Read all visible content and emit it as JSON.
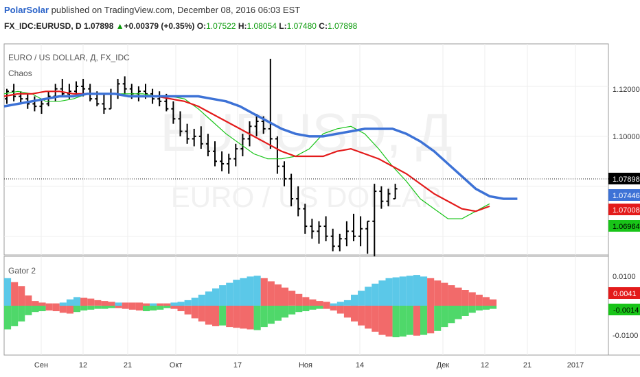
{
  "header": {
    "author": "PolarSolar",
    "published": "published on TradingView.com, December 08, 2016 06:03 EST",
    "symbol": "FX_IDC:EURUSD, D",
    "last": "1.07898",
    "change": "+0.00379 (+0.35%)",
    "o_label": "O:",
    "o": "1.07522",
    "h_label": "H:",
    "h": "1.08054",
    "l_label": "L:",
    "l": "1.07480",
    "c_label": "C:",
    "c": "1.07898"
  },
  "main_pane": {
    "title": "EURO / US DOLLAR, Д, FX_IDC",
    "indicator": "Chaos",
    "watermark_line1": "EURUSD, Д",
    "watermark_line2": "EURO / US DOLLAR",
    "axis_ticks": [
      "1.12000",
      "1.10000"
    ],
    "price_labels": [
      {
        "value": "1.07898",
        "color": "#000000"
      },
      {
        "value": "1.07446",
        "color": "#3d72d6"
      },
      {
        "value": "1.07008",
        "color": "#e31b1b"
      },
      {
        "value": "1.06964",
        "color": "#18c418"
      }
    ]
  },
  "lower_pane": {
    "title": "Gator 2",
    "axis_ticks": [
      "0.0100",
      "-0.0100"
    ],
    "value_labels": [
      {
        "value": "0.0041",
        "color": "#e31b1b"
      },
      {
        "value": "-0.0014",
        "color": "#18c418"
      }
    ]
  },
  "x_axis": {
    "labels": [
      "Сен",
      "12",
      "21",
      "Окт",
      "17",
      "Ноя",
      "14",
      "Дек",
      "12",
      "21",
      "2017"
    ]
  },
  "colors": {
    "jaw": "#3d72d6",
    "teeth": "#e31b1b",
    "lips": "#18c418",
    "gator_up_top": "#5bc8e8",
    "gator_down_top": "#f26a6a",
    "gator_up_bottom": "#4fd86a",
    "gator_down_bottom": "#f26a6a"
  },
  "chart_data": {
    "type": "line",
    "price_range": [
      1.0525,
      1.137
    ],
    "alligator_jaw": [
      1.112,
      1.113,
      1.114,
      1.115,
      1.116,
      1.116,
      1.117,
      1.117,
      1.117,
      1.116,
      1.116,
      1.116,
      1.116,
      1.116,
      1.116,
      1.115,
      1.114,
      1.112,
      1.109,
      1.106,
      1.103,
      1.101,
      1.1,
      1.1,
      1.101,
      1.102,
      1.103,
      1.103,
      1.103,
      1.101,
      1.098,
      1.094,
      1.089,
      1.084,
      1.079,
      1.076,
      1.075,
      1.075
    ],
    "alligator_teeth": [
      1.116,
      1.117,
      1.117,
      1.118,
      1.118,
      1.117,
      1.117,
      1.117,
      1.117,
      1.116,
      1.116,
      1.116,
      1.115,
      1.114,
      1.112,
      1.109,
      1.106,
      1.103,
      1.1,
      1.097,
      1.094,
      1.092,
      1.092,
      1.092,
      1.094,
      1.095,
      1.093,
      1.091,
      1.088,
      1.085,
      1.081,
      1.077,
      1.074,
      1.071,
      1.07,
      1.072
    ],
    "alligator_lips": [
      1.117,
      1.118,
      1.117,
      1.114,
      1.114,
      1.115,
      1.117,
      1.117,
      1.117,
      1.117,
      1.117,
      1.116,
      1.116,
      1.115,
      1.111,
      1.106,
      1.101,
      1.097,
      1.093,
      1.091,
      1.091,
      1.092,
      1.095,
      1.101,
      1.103,
      1.104,
      1.101,
      1.095,
      1.088,
      1.082,
      1.075,
      1.071,
      1.067,
      1.067,
      1.07,
      1.073
    ],
    "bars": [
      {
        "h": 1.119,
        "l": 1.113,
        "o": 1.115,
        "c": 1.118
      },
      {
        "h": 1.121,
        "l": 1.114,
        "o": 1.118,
        "c": 1.116
      },
      {
        "h": 1.118,
        "l": 1.113,
        "o": 1.116,
        "c": 1.115
      },
      {
        "h": 1.117,
        "l": 1.111,
        "o": 1.115,
        "c": 1.113
      },
      {
        "h": 1.116,
        "l": 1.11,
        "o": 1.113,
        "c": 1.112
      },
      {
        "h": 1.115,
        "l": 1.109,
        "o": 1.112,
        "c": 1.113
      },
      {
        "h": 1.118,
        "l": 1.112,
        "o": 1.113,
        "c": 1.116
      },
      {
        "h": 1.121,
        "l": 1.114,
        "o": 1.116,
        "c": 1.119
      },
      {
        "h": 1.123,
        "l": 1.116,
        "o": 1.119,
        "c": 1.117
      },
      {
        "h": 1.121,
        "l": 1.115,
        "o": 1.117,
        "c": 1.118
      },
      {
        "h": 1.122,
        "l": 1.116,
        "o": 1.118,
        "c": 1.12
      },
      {
        "h": 1.123,
        "l": 1.116,
        "o": 1.12,
        "c": 1.119
      },
      {
        "h": 1.121,
        "l": 1.114,
        "o": 1.119,
        "c": 1.115
      },
      {
        "h": 1.118,
        "l": 1.112,
        "o": 1.115,
        "c": 1.113
      },
      {
        "h": 1.117,
        "l": 1.109,
        "o": 1.113,
        "c": 1.111
      },
      {
        "h": 1.119,
        "l": 1.111,
        "o": 1.111,
        "c": 1.117
      },
      {
        "h": 1.123,
        "l": 1.115,
        "o": 1.117,
        "c": 1.121
      },
      {
        "h": 1.124,
        "l": 1.117,
        "o": 1.121,
        "c": 1.119
      },
      {
        "h": 1.121,
        "l": 1.115,
        "o": 1.119,
        "c": 1.117
      },
      {
        "h": 1.12,
        "l": 1.114,
        "o": 1.117,
        "c": 1.118
      },
      {
        "h": 1.121,
        "l": 1.115,
        "o": 1.118,
        "c": 1.117
      },
      {
        "h": 1.119,
        "l": 1.113,
        "o": 1.117,
        "c": 1.115
      },
      {
        "h": 1.118,
        "l": 1.112,
        "o": 1.115,
        "c": 1.114
      },
      {
        "h": 1.117,
        "l": 1.11,
        "o": 1.114,
        "c": 1.111
      },
      {
        "h": 1.114,
        "l": 1.105,
        "o": 1.111,
        "c": 1.107
      },
      {
        "h": 1.11,
        "l": 1.1,
        "o": 1.107,
        "c": 1.102
      },
      {
        "h": 1.105,
        "l": 1.097,
        "o": 1.102,
        "c": 1.099
      },
      {
        "h": 1.103,
        "l": 1.096,
        "o": 1.099,
        "c": 1.1
      },
      {
        "h": 1.104,
        "l": 1.095,
        "o": 1.1,
        "c": 1.097
      },
      {
        "h": 1.101,
        "l": 1.092,
        "o": 1.097,
        "c": 1.094
      },
      {
        "h": 1.098,
        "l": 1.088,
        "o": 1.094,
        "c": 1.09
      },
      {
        "h": 1.094,
        "l": 1.086,
        "o": 1.09,
        "c": 1.089
      },
      {
        "h": 1.093,
        "l": 1.085,
        "o": 1.089,
        "c": 1.091
      },
      {
        "h": 1.097,
        "l": 1.088,
        "o": 1.091,
        "c": 1.095
      },
      {
        "h": 1.101,
        "l": 1.092,
        "o": 1.095,
        "c": 1.099
      },
      {
        "h": 1.106,
        "l": 1.096,
        "o": 1.099,
        "c": 1.104
      },
      {
        "h": 1.109,
        "l": 1.1,
        "o": 1.104,
        "c": 1.106
      },
      {
        "h": 1.108,
        "l": 1.101,
        "o": 1.106,
        "c": 1.103
      },
      {
        "h": 1.131,
        "l": 1.095,
        "o": 1.103,
        "c": 1.099
      },
      {
        "h": 1.1,
        "l": 1.085,
        "o": 1.099,
        "c": 1.088
      },
      {
        "h": 1.09,
        "l": 1.08,
        "o": 1.088,
        "c": 1.083
      },
      {
        "h": 1.085,
        "l": 1.072,
        "o": 1.083,
        "c": 1.075
      },
      {
        "h": 1.08,
        "l": 1.068,
        "o": 1.075,
        "c": 1.071
      },
      {
        "h": 1.073,
        "l": 1.061,
        "o": 1.071,
        "c": 1.064
      },
      {
        "h": 1.067,
        "l": 1.059,
        "o": 1.064,
        "c": 1.062
      },
      {
        "h": 1.066,
        "l": 1.057,
        "o": 1.062,
        "c": 1.064
      },
      {
        "h": 1.068,
        "l": 1.058,
        "o": 1.064,
        "c": 1.06
      },
      {
        "h": 1.063,
        "l": 1.054,
        "o": 1.06,
        "c": 1.056
      },
      {
        "h": 1.061,
        "l": 1.054,
        "o": 1.056,
        "c": 1.059
      },
      {
        "h": 1.066,
        "l": 1.056,
        "o": 1.059,
        "c": 1.062
      },
      {
        "h": 1.069,
        "l": 1.058,
        "o": 1.062,
        "c": 1.06
      },
      {
        "h": 1.068,
        "l": 1.056,
        "o": 1.06,
        "c": 1.063
      },
      {
        "h": 1.066,
        "l": 1.053,
        "o": 1.063,
        "c": 1.066
      },
      {
        "h": 1.081,
        "l": 1.052,
        "o": 1.066,
        "c": 1.078
      },
      {
        "h": 1.08,
        "l": 1.071,
        "o": 1.078,
        "c": 1.074
      },
      {
        "h": 1.079,
        "l": 1.072,
        "o": 1.074,
        "c": 1.077
      },
      {
        "h": 1.081,
        "l": 1.075,
        "o": 1.075,
        "c": 1.079
      }
    ],
    "gator_upper": [
      3.5,
      3.0,
      2.5,
      1.3,
      0.6,
      0.4,
      0.3,
      0.3,
      0.4,
      0.8,
      1.1,
      1.0,
      0.9,
      0.7,
      0.6,
      0.5,
      0.4,
      0.4,
      0.4,
      0.4,
      0.3,
      0.3,
      0.3,
      0.3,
      0.4,
      0.5,
      0.7,
      1.0,
      1.4,
      1.8,
      2.2,
      2.6,
      2.9,
      3.3,
      3.5,
      3.7,
      3.8,
      3.5,
      3.1,
      2.7,
      2.3,
      1.9,
      1.5,
      1.1,
      0.8,
      0.6,
      0.5,
      0.3,
      0.5,
      0.7,
      1.4,
      1.9,
      2.4,
      2.8,
      3.2,
      3.5,
      3.6,
      3.7,
      3.8,
      3.9,
      3.7,
      3.5,
      3.2,
      2.9,
      2.6,
      2.3,
      2.0,
      1.7,
      1.4,
      1.1,
      0.8
    ],
    "gator_lower": [
      3.0,
      2.6,
      2.0,
      1.2,
      0.8,
      0.7,
      0.6,
      0.7,
      0.9,
      1.0,
      0.8,
      0.6,
      0.5,
      0.4,
      0.4,
      0.3,
      0.3,
      0.4,
      0.5,
      0.6,
      0.7,
      0.6,
      0.5,
      0.3,
      0.4,
      0.7,
      1.1,
      1.6,
      2.0,
      2.4,
      2.6,
      2.5,
      2.7,
      2.8,
      2.9,
      3.0,
      3.1,
      2.7,
      2.3,
      1.9,
      1.5,
      1.1,
      0.8,
      0.7,
      0.5,
      0.4,
      0.4,
      0.6,
      1.0,
      1.5,
      2.0,
      2.5,
      2.9,
      3.3,
      3.7,
      3.9,
      4.0,
      3.9,
      3.7,
      3.8,
      3.7,
      3.5,
      3.2,
      2.7,
      2.2,
      1.7,
      1.3,
      0.9,
      0.6,
      0.5,
      0.4
    ],
    "gator_upper_colors": "UDDDDDDDUUUDDDDDUDDDDUDDUUUUUUUUUUUUUDDDDDDDDDDUUUUUUUUUUUUUUDDDDDDDDDD",
    "gator_lower_colors": "UUUUUUDDDDUUUUUUDDDDUUUUDDDDDDDUDDDDUUUUUUUUUUDDDDDDDDDDUUUDUDUUUUUUUUU"
  }
}
